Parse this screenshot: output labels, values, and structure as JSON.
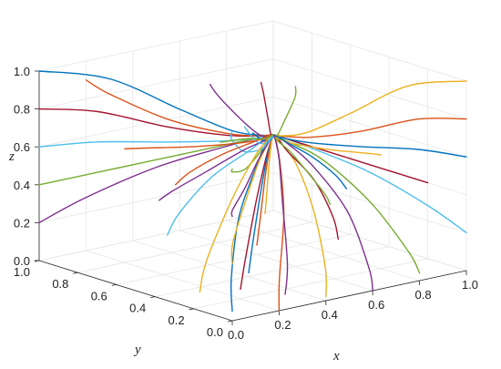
{
  "chart_data": {
    "type": "line",
    "projection": "3d-isometric",
    "xlabel": "x",
    "ylabel": "y",
    "zlabel": "z",
    "xlim": [
      0,
      1
    ],
    "ylim": [
      0,
      1
    ],
    "zlim": [
      0,
      1
    ],
    "x_ticks": [
      "0.0",
      "0.2",
      "0.4",
      "0.6",
      "0.8",
      "1.0"
    ],
    "y_ticks": [
      "0.0",
      "0.2",
      "0.4",
      "0.6",
      "0.8",
      "1.0"
    ],
    "z_ticks": [
      "0.0",
      "0.2",
      "0.4",
      "0.6",
      "0.8",
      "1.0"
    ],
    "grid": true,
    "legend": "none",
    "target_point": [
      1.0,
      1.0,
      0.4
    ],
    "colors": [
      "#0072BD",
      "#D95319",
      "#EDB120",
      "#7E2F8E",
      "#77AC30",
      "#4DBEEE",
      "#A2142F"
    ],
    "series": [
      {
        "x": [
          0.0,
          0.12,
          0.4,
          0.72,
          0.9,
          1.0
        ],
        "y": [
          0.0,
          0.15,
          0.45,
          0.75,
          0.92,
          1.0
        ],
        "z": [
          0.05,
          0.15,
          0.3,
          0.38,
          0.4,
          0.4
        ]
      },
      {
        "x": [
          0.2,
          0.3,
          0.55,
          0.8,
          0.94,
          1.0
        ],
        "y": [
          0.0,
          0.12,
          0.4,
          0.72,
          0.91,
          1.0
        ],
        "z": [
          0.0,
          0.1,
          0.28,
          0.37,
          0.4,
          0.4
        ]
      },
      {
        "x": [
          0.4,
          0.48,
          0.66,
          0.85,
          0.95,
          1.0
        ],
        "y": [
          0.0,
          0.1,
          0.38,
          0.7,
          0.9,
          1.0
        ],
        "z": [
          0.02,
          0.12,
          0.29,
          0.38,
          0.4,
          0.4
        ]
      },
      {
        "x": [
          0.6,
          0.65,
          0.78,
          0.9,
          0.97,
          1.0
        ],
        "y": [
          0.0,
          0.08,
          0.35,
          0.68,
          0.9,
          1.0
        ],
        "z": [
          0.0,
          0.08,
          0.26,
          0.37,
          0.4,
          0.4
        ]
      },
      {
        "x": [
          0.8,
          0.82,
          0.88,
          0.95,
          0.98,
          1.0
        ],
        "y": [
          0.0,
          0.08,
          0.35,
          0.68,
          0.9,
          1.0
        ],
        "z": [
          0.04,
          0.12,
          0.28,
          0.38,
          0.4,
          0.4
        ]
      },
      {
        "x": [
          1.0,
          1.0,
          1.0,
          1.0,
          1.0,
          1.0
        ],
        "y": [
          0.0,
          0.2,
          0.5,
          0.78,
          0.93,
          1.0
        ],
        "z": [
          0.2,
          0.28,
          0.36,
          0.39,
          0.4,
          0.4
        ]
      },
      {
        "x": [
          1.0,
          1.0,
          1.0,
          1.0,
          1.0,
          1.0
        ],
        "y": [
          0.2,
          0.35,
          0.6,
          0.82,
          0.95,
          1.0
        ],
        "z": [
          0.4,
          0.4,
          0.4,
          0.4,
          0.4,
          0.4
        ]
      },
      {
        "x": [
          1.0,
          1.0,
          1.0,
          1.0,
          1.0,
          1.0
        ],
        "y": [
          0.0,
          0.25,
          0.55,
          0.8,
          0.94,
          1.0
        ],
        "z": [
          0.6,
          0.56,
          0.48,
          0.42,
          0.4,
          0.4
        ]
      },
      {
        "x": [
          1.0,
          1.0,
          1.0,
          1.0,
          1.0,
          1.0
        ],
        "y": [
          0.0,
          0.25,
          0.55,
          0.8,
          0.94,
          1.0
        ],
        "z": [
          0.8,
          0.72,
          0.56,
          0.45,
          0.41,
          0.4
        ]
      },
      {
        "x": [
          1.0,
          1.0,
          1.0,
          1.0,
          1.0,
          1.0
        ],
        "y": [
          0.0,
          0.3,
          0.6,
          0.82,
          0.95,
          1.0
        ],
        "z": [
          1.0,
          0.88,
          0.64,
          0.47,
          0.41,
          0.4
        ]
      },
      {
        "x": [
          0.0,
          0.2,
          0.5,
          0.78,
          0.93,
          1.0
        ],
        "y": [
          1.0,
          1.0,
          1.0,
          1.0,
          1.0,
          1.0
        ],
        "z": [
          0.2,
          0.28,
          0.36,
          0.39,
          0.4,
          0.4
        ]
      },
      {
        "x": [
          0.0,
          0.25,
          0.55,
          0.8,
          0.94,
          1.0
        ],
        "y": [
          1.0,
          1.0,
          1.0,
          1.0,
          1.0,
          1.0
        ],
        "z": [
          0.4,
          0.4,
          0.4,
          0.4,
          0.4,
          0.4
        ]
      },
      {
        "x": [
          0.0,
          0.25,
          0.55,
          0.8,
          0.94,
          1.0
        ],
        "y": [
          1.0,
          1.0,
          1.0,
          1.0,
          1.0,
          1.0
        ],
        "z": [
          0.6,
          0.56,
          0.48,
          0.42,
          0.4,
          0.4
        ]
      },
      {
        "x": [
          0.0,
          0.25,
          0.55,
          0.8,
          0.94,
          1.0
        ],
        "y": [
          1.0,
          1.0,
          1.0,
          1.0,
          1.0,
          1.0
        ],
        "z": [
          0.8,
          0.72,
          0.56,
          0.45,
          0.41,
          0.4
        ]
      },
      {
        "x": [
          0.0,
          0.3,
          0.6,
          0.82,
          0.95,
          1.0
        ],
        "y": [
          1.0,
          1.0,
          1.0,
          1.0,
          1.0,
          1.0
        ],
        "z": [
          1.0,
          0.88,
          0.64,
          0.47,
          0.41,
          0.4
        ]
      },
      {
        "x": [
          0.2,
          0.3,
          0.55,
          0.8,
          0.94,
          1.0
        ],
        "y": [
          1.0,
          1.0,
          1.0,
          1.0,
          1.0,
          1.0
        ],
        "z": [
          0.9,
          0.8,
          0.6,
          0.46,
          0.41,
          0.4
        ]
      },
      {
        "x": [
          0.0,
          0.1,
          0.4,
          0.72,
          0.91,
          1.0
        ],
        "y": [
          0.0,
          0.12,
          0.42,
          0.74,
          0.92,
          1.0
        ],
        "z": [
          0.3,
          0.34,
          0.38,
          0.4,
          0.4,
          0.4
        ]
      },
      {
        "x": [
          0.0,
          0.1,
          0.4,
          0.72,
          0.91,
          1.0
        ],
        "y": [
          0.0,
          0.12,
          0.42,
          0.74,
          0.92,
          1.0
        ],
        "z": [
          0.55,
          0.52,
          0.46,
          0.42,
          0.4,
          0.4
        ]
      },
      {
        "x": [
          0.0,
          0.1,
          0.4,
          0.72,
          0.91,
          1.0
        ],
        "y": [
          0.0,
          0.12,
          0.42,
          0.74,
          0.92,
          1.0
        ],
        "z": [
          0.8,
          0.72,
          0.56,
          0.45,
          0.41,
          0.4
        ]
      },
      {
        "x": [
          0.0,
          0.12,
          0.42,
          0.74,
          0.92,
          1.0
        ],
        "y": [
          0.0,
          0.15,
          0.45,
          0.75,
          0.93,
          1.0
        ],
        "z": [
          1.0,
          0.88,
          0.64,
          0.47,
          0.41,
          0.4
        ]
      },
      {
        "x": [
          0.2,
          0.32,
          0.58,
          0.82,
          0.95,
          1.0
        ],
        "y": [
          0.2,
          0.32,
          0.58,
          0.82,
          0.95,
          1.0
        ],
        "z": [
          0.05,
          0.14,
          0.29,
          0.38,
          0.4,
          0.4
        ]
      },
      {
        "x": [
          0.4,
          0.5,
          0.7,
          0.87,
          0.96,
          1.0
        ],
        "y": [
          0.4,
          0.5,
          0.7,
          0.87,
          0.96,
          1.0
        ],
        "z": [
          0.02,
          0.12,
          0.28,
          0.38,
          0.4,
          0.4
        ]
      },
      {
        "x": [
          0.6,
          0.68,
          0.8,
          0.91,
          0.97,
          1.0
        ],
        "y": [
          0.6,
          0.68,
          0.8,
          0.91,
          0.97,
          1.0
        ],
        "z": [
          0.05,
          0.14,
          0.29,
          0.38,
          0.4,
          0.4
        ]
      },
      {
        "x": [
          0.8,
          0.84,
          0.9,
          0.95,
          0.98,
          1.0
        ],
        "y": [
          0.8,
          0.84,
          0.9,
          0.95,
          0.98,
          1.0
        ],
        "z": [
          0.1,
          0.18,
          0.31,
          0.38,
          0.4,
          0.4
        ]
      },
      {
        "x": [
          0.4,
          0.5,
          0.7,
          0.87,
          0.96,
          1.0
        ],
        "y": [
          0.6,
          0.68,
          0.8,
          0.91,
          0.97,
          1.0
        ],
        "z": [
          0.95,
          0.84,
          0.62,
          0.46,
          0.41,
          0.4
        ]
      },
      {
        "x": [
          0.6,
          0.68,
          0.8,
          0.91,
          0.97,
          1.0
        ],
        "y": [
          0.4,
          0.5,
          0.7,
          0.87,
          0.96,
          1.0
        ],
        "z": [
          0.95,
          0.84,
          0.62,
          0.46,
          0.41,
          0.4
        ]
      },
      {
        "x": [
          0.3,
          0.4,
          0.62,
          0.84,
          0.95,
          1.0
        ],
        "y": [
          0.7,
          0.76,
          0.86,
          0.93,
          0.98,
          1.0
        ],
        "z": [
          0.15,
          0.22,
          0.32,
          0.38,
          0.4,
          0.4
        ]
      },
      {
        "x": [
          0.7,
          0.76,
          0.86,
          0.93,
          0.98,
          1.0
        ],
        "y": [
          0.3,
          0.4,
          0.62,
          0.84,
          0.95,
          1.0
        ],
        "z": [
          0.15,
          0.22,
          0.32,
          0.38,
          0.4,
          0.4
        ]
      },
      {
        "x": [
          0.5,
          0.58,
          0.74,
          0.89,
          0.96,
          1.0
        ],
        "y": [
          0.5,
          0.58,
          0.74,
          0.89,
          0.96,
          1.0
        ],
        "z": [
          0.7,
          0.64,
          0.52,
          0.43,
          0.4,
          0.4
        ]
      },
      {
        "x": [
          0.2,
          0.32,
          0.58,
          0.82,
          0.95,
          1.0
        ],
        "y": [
          0.8,
          0.84,
          0.9,
          0.95,
          0.98,
          1.0
        ],
        "z": [
          0.6,
          0.56,
          0.48,
          0.42,
          0.4,
          0.4
        ]
      },
      {
        "x": [
          0.8,
          0.84,
          0.9,
          0.95,
          0.98,
          1.0
        ],
        "y": [
          0.2,
          0.32,
          0.58,
          0.82,
          0.95,
          1.0
        ],
        "z": [
          0.6,
          0.56,
          0.48,
          0.42,
          0.4,
          0.4
        ]
      },
      {
        "x": [
          0.1,
          0.22,
          0.5,
          0.78,
          0.93,
          1.0
        ],
        "y": [
          0.5,
          0.58,
          0.74,
          0.89,
          0.96,
          1.0
        ],
        "z": [
          0.45,
          0.44,
          0.42,
          0.41,
          0.4,
          0.4
        ]
      },
      {
        "x": [
          0.5,
          0.58,
          0.74,
          0.89,
          0.96,
          1.0
        ],
        "y": [
          0.1,
          0.22,
          0.5,
          0.78,
          0.93,
          1.0
        ],
        "z": [
          0.45,
          0.44,
          0.42,
          0.41,
          0.4,
          0.4
        ]
      },
      {
        "x": [
          0.3,
          0.4,
          0.62,
          0.84,
          0.95,
          1.0
        ],
        "y": [
          0.3,
          0.4,
          0.62,
          0.84,
          0.95,
          1.0
        ],
        "z": [
          0.85,
          0.76,
          0.58,
          0.45,
          0.41,
          0.4
        ]
      },
      {
        "x": [
          0.7,
          0.76,
          0.86,
          0.93,
          0.98,
          1.0
        ],
        "y": [
          0.7,
          0.76,
          0.86,
          0.93,
          0.98,
          1.0
        ],
        "z": [
          0.85,
          0.76,
          0.58,
          0.45,
          0.41,
          0.4
        ]
      },
      {
        "x": [
          0.9,
          0.92,
          0.95,
          0.97,
          0.99,
          1.0
        ],
        "y": [
          0.5,
          0.58,
          0.74,
          0.89,
          0.96,
          1.0
        ],
        "z": [
          0.3,
          0.34,
          0.38,
          0.4,
          0.4,
          0.4
        ]
      },
      {
        "x": [
          0.5,
          0.58,
          0.74,
          0.89,
          0.96,
          1.0
        ],
        "y": [
          0.9,
          0.92,
          0.95,
          0.97,
          0.99,
          1.0
        ],
        "z": [
          0.3,
          0.34,
          0.38,
          0.4,
          0.4,
          0.4
        ]
      },
      {
        "x": [
          0.15,
          0.26,
          0.54,
          0.8,
          0.94,
          1.0
        ],
        "y": [
          0.35,
          0.45,
          0.66,
          0.86,
          0.96,
          1.0
        ],
        "z": [
          0.0,
          0.1,
          0.28,
          0.37,
          0.4,
          0.4
        ]
      },
      {
        "x": [
          0.35,
          0.45,
          0.66,
          0.86,
          0.96,
          1.0
        ],
        "y": [
          0.15,
          0.26,
          0.54,
          0.8,
          0.94,
          1.0
        ],
        "z": [
          0.0,
          0.1,
          0.28,
          0.37,
          0.4,
          0.4
        ]
      },
      {
        "x": [
          0.65,
          0.72,
          0.83,
          0.92,
          0.98,
          1.0
        ],
        "y": [
          0.85,
          0.88,
          0.92,
          0.96,
          0.99,
          1.0
        ],
        "z": [
          0.5,
          0.48,
          0.45,
          0.41,
          0.4,
          0.4
        ]
      }
    ]
  }
}
